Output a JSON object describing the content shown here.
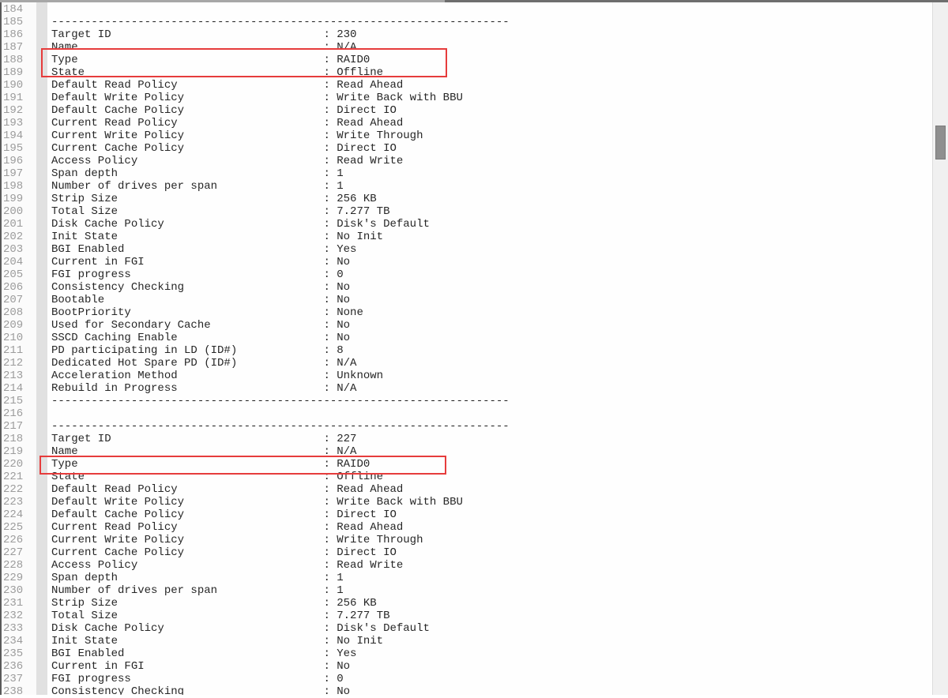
{
  "colors": {
    "annotation_red": "#e63c3c",
    "text": "#262626",
    "line_number": "#9c9c9c",
    "gutter_bg": "#fbfbfb",
    "fold_margin_bg": "#e1e1e1",
    "scroll_thumb": "#8f8f8f",
    "scroll_track": "#f0f0f0"
  },
  "separator": "---------------------------------------------------------------------",
  "first_line_number": 184,
  "editor": {
    "lines": [
      {
        "n": 184,
        "type": "blank"
      },
      {
        "n": 185,
        "type": "separator"
      },
      {
        "n": 186,
        "label": "Target ID",
        "value": "230"
      },
      {
        "n": 187,
        "label": "Name",
        "value": "N/A"
      },
      {
        "n": 188,
        "label": "Type",
        "value": "RAID0"
      },
      {
        "n": 189,
        "label": "State",
        "value": "Offline"
      },
      {
        "n": 190,
        "label": "Default Read Policy",
        "value": "Read Ahead"
      },
      {
        "n": 191,
        "label": "Default Write Policy",
        "value": "Write Back with BBU"
      },
      {
        "n": 192,
        "label": "Default Cache Policy",
        "value": "Direct IO"
      },
      {
        "n": 193,
        "label": "Current Read Policy",
        "value": "Read Ahead"
      },
      {
        "n": 194,
        "label": "Current Write Policy",
        "value": "Write Through"
      },
      {
        "n": 195,
        "label": "Current Cache Policy",
        "value": "Direct IO"
      },
      {
        "n": 196,
        "label": "Access Policy",
        "value": "Read Write"
      },
      {
        "n": 197,
        "label": "Span depth",
        "value": "1"
      },
      {
        "n": 198,
        "label": "Number of drives per span",
        "value": "1"
      },
      {
        "n": 199,
        "label": "Strip Size",
        "value": "256 KB"
      },
      {
        "n": 200,
        "label": "Total Size",
        "value": "7.277 TB"
      },
      {
        "n": 201,
        "label": "Disk Cache Policy",
        "value": "Disk's Default"
      },
      {
        "n": 202,
        "label": "Init State",
        "value": "No Init"
      },
      {
        "n": 203,
        "label": "BGI Enabled",
        "value": "Yes"
      },
      {
        "n": 204,
        "label": "Current in FGI",
        "value": "No"
      },
      {
        "n": 205,
        "label": "FGI progress",
        "value": "0"
      },
      {
        "n": 206,
        "label": "Consistency Checking",
        "value": "No"
      },
      {
        "n": 207,
        "label": "Bootable",
        "value": "No"
      },
      {
        "n": 208,
        "label": "BootPriority",
        "value": "None"
      },
      {
        "n": 209,
        "label": "Used for Secondary Cache",
        "value": "No"
      },
      {
        "n": 210,
        "label": "SSCD Caching Enable",
        "value": "No"
      },
      {
        "n": 211,
        "label": "PD participating in LD (ID#)",
        "value": "8"
      },
      {
        "n": 212,
        "label": "Dedicated Hot Spare PD (ID#)",
        "value": "N/A"
      },
      {
        "n": 213,
        "label": "Acceleration Method",
        "value": "Unknown"
      },
      {
        "n": 214,
        "label": "Rebuild in Progress",
        "value": "N/A"
      },
      {
        "n": 215,
        "type": "separator"
      },
      {
        "n": 216,
        "type": "blank"
      },
      {
        "n": 217,
        "type": "separator"
      },
      {
        "n": 218,
        "label": "Target ID",
        "value": "227"
      },
      {
        "n": 219,
        "label": "Name",
        "value": "N/A"
      },
      {
        "n": 220,
        "label": "Type",
        "value": "RAID0"
      },
      {
        "n": 221,
        "label": "State",
        "value": "Offline"
      },
      {
        "n": 222,
        "label": "Default Read Policy",
        "value": "Read Ahead"
      },
      {
        "n": 223,
        "label": "Default Write Policy",
        "value": "Write Back with BBU"
      },
      {
        "n": 224,
        "label": "Default Cache Policy",
        "value": "Direct IO"
      },
      {
        "n": 225,
        "label": "Current Read Policy",
        "value": "Read Ahead"
      },
      {
        "n": 226,
        "label": "Current Write Policy",
        "value": "Write Through"
      },
      {
        "n": 227,
        "label": "Current Cache Policy",
        "value": "Direct IO"
      },
      {
        "n": 228,
        "label": "Access Policy",
        "value": "Read Write"
      },
      {
        "n": 229,
        "label": "Span depth",
        "value": "1"
      },
      {
        "n": 230,
        "label": "Number of drives per span",
        "value": "1"
      },
      {
        "n": 231,
        "label": "Strip Size",
        "value": "256 KB"
      },
      {
        "n": 232,
        "label": "Total Size",
        "value": "7.277 TB"
      },
      {
        "n": 233,
        "label": "Disk Cache Policy",
        "value": "Disk's Default"
      },
      {
        "n": 234,
        "label": "Init State",
        "value": "No Init"
      },
      {
        "n": 235,
        "label": "BGI Enabled",
        "value": "Yes"
      },
      {
        "n": 236,
        "label": "Current in FGI",
        "value": "No"
      },
      {
        "n": 237,
        "label": "FGI progress",
        "value": "0"
      },
      {
        "n": 238,
        "label": "Consistency Checking",
        "value": "No"
      }
    ]
  },
  "annotations": [
    {
      "name": "highlight-type-state-target-230",
      "covers_lines": "188-189",
      "highlighted_text": "Type : RAID0 / State : Offline"
    },
    {
      "name": "highlight-type-state-target-227",
      "covers_lines": "220-221",
      "highlighted_text": "Type : RAID0 / State : Offline"
    }
  ],
  "scrollbar": {
    "thumb_position": "upper",
    "orientation": "vertical"
  }
}
